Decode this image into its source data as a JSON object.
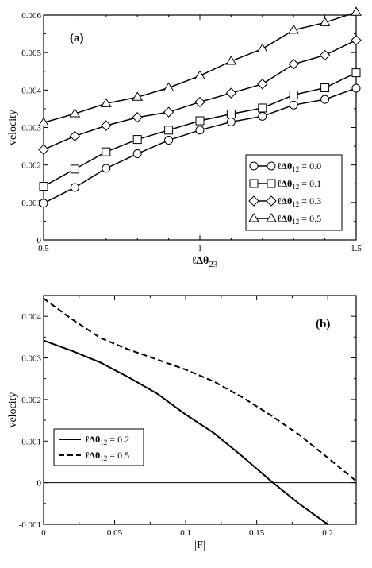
{
  "chart_data": [
    {
      "type": "line",
      "panel_label": "(a)",
      "xlabel": "ℓΔθ23",
      "ylabel": "velocity",
      "xlim": [
        0.5,
        1.5
      ],
      "ylim": [
        0,
        0.006
      ],
      "xticks": [
        "0.5",
        "1",
        "1.5"
      ],
      "yticks": [
        "0",
        "0.001",
        "0.002",
        "0.003",
        "0.004",
        "0.005",
        "0.006"
      ],
      "legend_position": "lower-right",
      "x": [
        0.5,
        0.6,
        0.7,
        0.8,
        0.9,
        1.0,
        1.1,
        1.2,
        1.3,
        1.4,
        1.5
      ],
      "series": [
        {
          "name": "ℓΔθ12 = 0.0",
          "marker": "circle",
          "values": [
            0.00098,
            0.0014,
            0.00191,
            0.0023,
            0.00266,
            0.00293,
            0.00315,
            0.0033,
            0.0036,
            0.00375,
            0.00405
          ]
        },
        {
          "name": "ℓΔθ12 = 0.1",
          "marker": "square",
          "values": [
            0.00143,
            0.00189,
            0.00235,
            0.00268,
            0.00293,
            0.00318,
            0.00336,
            0.00352,
            0.00387,
            0.00406,
            0.00446
          ]
        },
        {
          "name": "ℓΔθ12 = 0.3",
          "marker": "diamond",
          "values": [
            0.00241,
            0.00277,
            0.00305,
            0.00327,
            0.00341,
            0.00368,
            0.00392,
            0.00416,
            0.00469,
            0.00493,
            0.00533
          ]
        },
        {
          "name": "ℓΔθ12 = 0.5",
          "marker": "triangle",
          "values": [
            0.00313,
            0.00337,
            0.00364,
            0.00381,
            0.00406,
            0.00438,
            0.00477,
            0.0051,
            0.0056,
            0.0058,
            0.00608
          ]
        }
      ]
    },
    {
      "type": "line",
      "panel_label": "(b)",
      "xlabel": "|F|",
      "ylabel": "velocity",
      "xlim": [
        0,
        0.22
      ],
      "ylim": [
        -0.001,
        0.0045
      ],
      "xticks": [
        "0",
        "0.05",
        "0.1",
        "0.15",
        "0.2"
      ],
      "yticks": [
        "-0.001",
        "0",
        "0.001",
        "0.002",
        "0.003",
        "0.004"
      ],
      "zero_line": true,
      "legend_position": "lower-left",
      "series": [
        {
          "name": "ℓΔθ12 = 0.2",
          "style": "solid",
          "x": [
            0,
            0.02,
            0.04,
            0.06,
            0.08,
            0.1,
            0.12,
            0.14,
            0.16,
            0.18,
            0.2
          ],
          "values": [
            0.00342,
            0.00317,
            0.00289,
            0.00253,
            0.00214,
            0.00164,
            0.00119,
            0.00063,
            4e-05,
            -0.00051,
            -0.001
          ]
        },
        {
          "name": "ℓΔθ12 = 0.5",
          "style": "dashed",
          "x": [
            0,
            0.02,
            0.04,
            0.06,
            0.08,
            0.1,
            0.12,
            0.14,
            0.16,
            0.18,
            0.2,
            0.22
          ],
          "values": [
            0.00443,
            0.00393,
            0.00348,
            0.0032,
            0.00296,
            0.00272,
            0.00243,
            0.00205,
            0.00162,
            0.00115,
            0.0006,
            4e-05
          ]
        }
      ]
    }
  ]
}
